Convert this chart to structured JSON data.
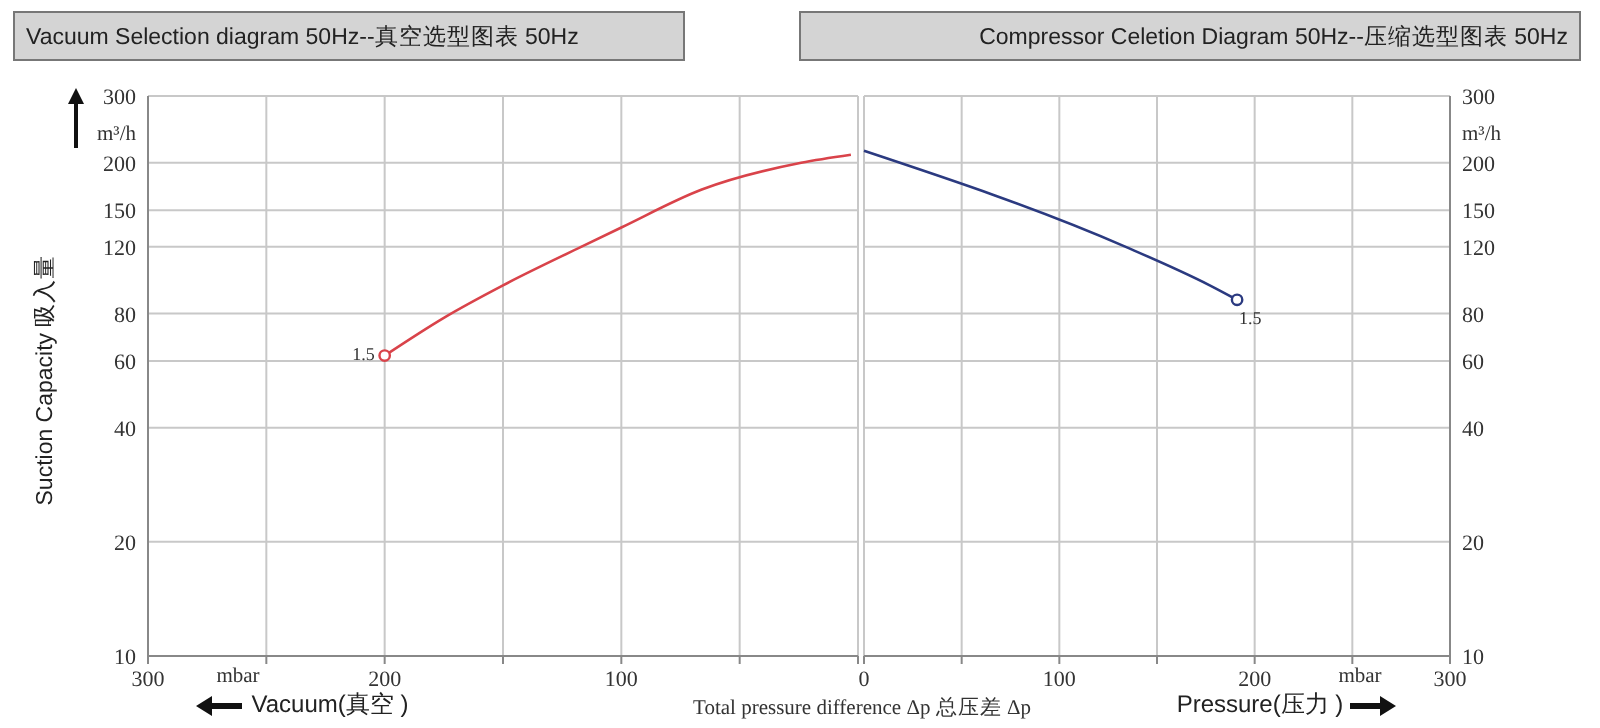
{
  "chart_data": [
    {
      "type": "line",
      "title": "Vacuum Selection diagram 50Hz--真空选型图表 50Hz",
      "xlabel": "Vacuum(真空 )",
      "ylabel": "Suction Capacity 吸入量",
      "x": [
        200,
        175,
        150,
        117,
        100,
        66,
        24,
        3
      ],
      "xlim": [
        300,
        0
      ],
      "xticks": [
        300,
        {
          "value": 250,
          "label": null
        },
        200,
        {
          "value": 150,
          "label": null
        },
        100,
        {
          "value": 50,
          "label": null
        },
        {
          "value": 0,
          "label": null
        }
      ],
      "ylim": [
        10,
        300
      ],
      "yticks": [
        10,
        20,
        40,
        60,
        80,
        120,
        150,
        200,
        300
      ],
      "log": true,
      "grid": true,
      "series": [
        {
          "color": "#d9434a",
          "values": [
            62,
            78,
            95,
            120,
            135,
            170,
            200,
            210
          ],
          "marker": "none"
        },
        {
          "type": "scatter",
          "color": "#d9434a",
          "x": [
            200
          ],
          "values": [
            62
          ],
          "marker": "circle"
        }
      ],
      "annotations": [
        "m³/h",
        "mbar",
        "Total pressure difference Δp 总压差 Δp",
        {
          "text": "1.5",
          "x": 200,
          "y": 62
        }
      ]
    },
    {
      "type": "line",
      "title": "Compressor Celetion Diagram 50Hz--压缩选型图表 50Hz",
      "xlabel": "Pressure(压力 )",
      "x": [
        0,
        134,
        177,
        191
      ],
      "xlim": [
        0,
        300
      ],
      "xticks": [
        0,
        {
          "value": 50,
          "label": null
        },
        100,
        {
          "value": 150,
          "label": null
        },
        200,
        {
          "value": 250,
          "label": null
        },
        300
      ],
      "ylim": [
        10,
        300
      ],
      "yticks": [
        10,
        20,
        40,
        60,
        80,
        120,
        150,
        200,
        300
      ],
      "log": true,
      "grid": true,
      "series": [
        {
          "color": "#2b3a80",
          "values": [
            215,
            120,
            95,
            87
          ],
          "marker": "none"
        },
        {
          "type": "scatter",
          "color": "#2b3a80",
          "x": [
            191
          ],
          "values": [
            87
          ],
          "marker": "circle"
        }
      ],
      "annotations": [
        "m³/h",
        "mbar",
        {
          "text": "1.5",
          "x": 191,
          "y": 87
        }
      ]
    }
  ]
}
